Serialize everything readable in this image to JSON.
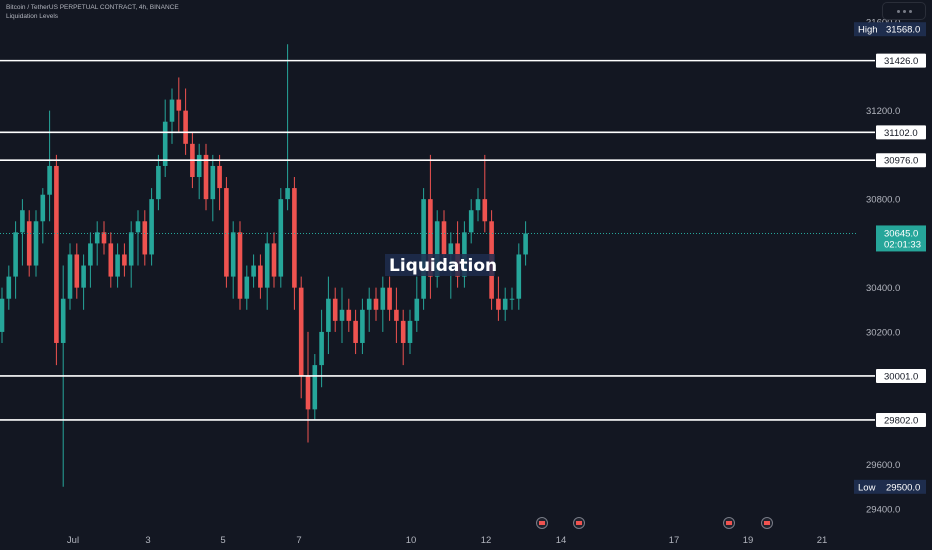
{
  "header": {
    "symbol_line": "Bitcoin / TetherUS PERPETUAL CONTRACT, 4h, BINANCE",
    "indicator_line": "Liquidation Levels"
  },
  "colors": {
    "background": "#131722",
    "up": "#26a69a",
    "down": "#ef5350",
    "level_line": "#ffffff",
    "axis_text": "#b2b5be",
    "tag_dark": "#1e2d4d",
    "tag_white": "#ffffff",
    "price_tag": "#26a69a"
  },
  "watermark_label": "Liquidation",
  "icons": [
    "more-options-icon",
    "earnings-event-icon"
  ],
  "chart_data": {
    "type": "candlestick",
    "ylim": [
      29350,
      31700
    ],
    "x_ticks": [
      "Jul",
      "3",
      "5",
      "7",
      "10",
      "12",
      "14",
      "17",
      "19",
      "21"
    ],
    "y_ticks": [
      {
        "value": 31600,
        "label": "31600.0"
      },
      {
        "value": 31200,
        "label": "31200.0"
      },
      {
        "value": 30800,
        "label": "30800.0"
      },
      {
        "value": 30400,
        "label": "30400.0"
      },
      {
        "value": 30200,
        "label": "30200.0"
      },
      {
        "value": 29600,
        "label": "29600.0"
      },
      {
        "value": 29400,
        "label": "29400.0"
      }
    ],
    "levels": [
      {
        "value": 31426,
        "label": "31426.0"
      },
      {
        "value": 31102,
        "label": "31102.0"
      },
      {
        "value": 30976,
        "label": "30976.0"
      },
      {
        "value": 30001,
        "label": "30001.0"
      },
      {
        "value": 29802,
        "label": "29802.0"
      }
    ],
    "high": {
      "label": "High",
      "value": 31568,
      "text": "31568.0"
    },
    "low": {
      "label": "Low",
      "value": 29500,
      "text": "29500.0"
    },
    "last_price": {
      "value": 30645,
      "text": "30645.0",
      "countdown": "02:01:33"
    },
    "candles": [
      [
        30200,
        30400,
        30150,
        30350
      ],
      [
        30350,
        30500,
        30300,
        30450
      ],
      [
        30450,
        30700,
        30350,
        30650
      ],
      [
        30650,
        30800,
        30500,
        30750
      ],
      [
        30700,
        30750,
        30450,
        30500
      ],
      [
        30500,
        30750,
        30450,
        30700
      ],
      [
        30700,
        30850,
        30600,
        30820
      ],
      [
        30820,
        31200,
        30700,
        30950
      ],
      [
        30950,
        31000,
        30050,
        30150
      ],
      [
        30150,
        30500,
        29500,
        30350
      ],
      [
        30350,
        30600,
        30300,
        30550
      ],
      [
        30550,
        30600,
        30350,
        30400
      ],
      [
        30400,
        30550,
        30300,
        30500
      ],
      [
        30500,
        30650,
        30400,
        30600
      ],
      [
        30600,
        30700,
        30500,
        30650
      ],
      [
        30650,
        30700,
        30550,
        30600
      ],
      [
        30600,
        30650,
        30400,
        30450
      ],
      [
        30450,
        30600,
        30400,
        30550
      ],
      [
        30550,
        30600,
        30450,
        30500
      ],
      [
        30500,
        30700,
        30400,
        30650
      ],
      [
        30650,
        30750,
        30500,
        30700
      ],
      [
        30700,
        30750,
        30500,
        30550
      ],
      [
        30550,
        30850,
        30500,
        30800
      ],
      [
        30800,
        31000,
        30750,
        30950
      ],
      [
        30950,
        31250,
        30900,
        31150
      ],
      [
        31150,
        31300,
        31050,
        31250
      ],
      [
        31250,
        31350,
        31100,
        31200
      ],
      [
        31200,
        31300,
        31000,
        31050
      ],
      [
        31050,
        31100,
        30850,
        30900
      ],
      [
        30900,
        31050,
        30800,
        31000
      ],
      [
        31000,
        31050,
        30750,
        30800
      ],
      [
        30800,
        31000,
        30700,
        30950
      ],
      [
        30950,
        31000,
        30750,
        30850
      ],
      [
        30850,
        30900,
        30400,
        30450
      ],
      [
        30450,
        30700,
        30350,
        30650
      ],
      [
        30650,
        30700,
        30300,
        30350
      ],
      [
        30350,
        30500,
        30300,
        30450
      ],
      [
        30450,
        30550,
        30400,
        30500
      ],
      [
        30500,
        30550,
        30350,
        30400
      ],
      [
        30400,
        30650,
        30300,
        30600
      ],
      [
        30600,
        30650,
        30400,
        30450
      ],
      [
        30450,
        30850,
        30400,
        30800
      ],
      [
        30800,
        31500,
        30750,
        30850
      ],
      [
        30850,
        30900,
        30300,
        30400
      ],
      [
        30400,
        30450,
        29900,
        30000
      ],
      [
        30000,
        30200,
        29700,
        29850
      ],
      [
        29850,
        30100,
        29800,
        30050
      ],
      [
        30050,
        30300,
        29950,
        30200
      ],
      [
        30200,
        30450,
        30100,
        30350
      ],
      [
        30350,
        30400,
        30200,
        30250
      ],
      [
        30250,
        30400,
        30150,
        30300
      ],
      [
        30300,
        30350,
        30200,
        30250
      ],
      [
        30250,
        30300,
        30100,
        30150
      ],
      [
        30150,
        30350,
        30100,
        30300
      ],
      [
        30300,
        30400,
        30200,
        30350
      ],
      [
        30350,
        30400,
        30250,
        30300
      ],
      [
        30300,
        30450,
        30200,
        30400
      ],
      [
        30400,
        30450,
        30250,
        30300
      ],
      [
        30300,
        30400,
        30150,
        30250
      ],
      [
        30250,
        30300,
        30050,
        30150
      ],
      [
        30150,
        30300,
        30100,
        30250
      ],
      [
        30250,
        30450,
        30200,
        30350
      ],
      [
        30350,
        30850,
        30300,
        30800
      ],
      [
        30800,
        31000,
        30350,
        30450
      ],
      [
        30450,
        30750,
        30400,
        30700
      ],
      [
        30700,
        30750,
        30500,
        30550
      ],
      [
        30550,
        30650,
        30350,
        30600
      ],
      [
        30600,
        30700,
        30400,
        30450
      ],
      [
        30450,
        30700,
        30400,
        30650
      ],
      [
        30650,
        30800,
        30600,
        30750
      ],
      [
        30750,
        30850,
        30700,
        30800
      ],
      [
        30800,
        31000,
        30650,
        30700
      ],
      [
        30700,
        30750,
        30300,
        30350
      ],
      [
        30350,
        30450,
        30250,
        30300
      ],
      [
        30300,
        30400,
        30250,
        30350
      ],
      [
        30350,
        30400,
        30300,
        30350
      ],
      [
        30350,
        30600,
        30300,
        30550
      ],
      [
        30550,
        30700,
        30500,
        30645
      ]
    ]
  }
}
